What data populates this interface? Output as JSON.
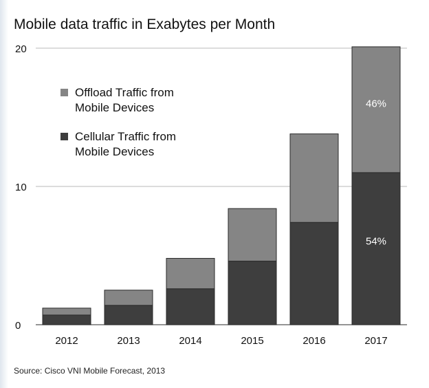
{
  "chart_data": {
    "type": "bar",
    "stacked": true,
    "title": "Mobile data traffic in Exabytes per Month",
    "categories": [
      "2012",
      "2013",
      "2014",
      "2015",
      "2016",
      "2017"
    ],
    "series": [
      {
        "name": "Cellular Traffic from\nMobile Devices",
        "values": [
          0.7,
          1.4,
          2.6,
          4.6,
          7.4,
          11.0
        ],
        "color": "#3e3e3e"
      },
      {
        "name": "Offload Traffic from\nMobile Devices",
        "values": [
          0.5,
          1.1,
          2.2,
          3.8,
          6.4,
          9.1
        ],
        "color": "#858585"
      }
    ],
    "annotations": [
      {
        "category": "2017",
        "series": "Offload Traffic from\nMobile Devices",
        "text": "46%"
      },
      {
        "category": "2017",
        "series": "Cellular Traffic from\nMobile Devices",
        "text": "54%"
      }
    ],
    "ylim": [
      0,
      20
    ],
    "yticks": [
      "0",
      "10",
      "20"
    ],
    "grid": true,
    "legend": "top-left",
    "xlabel": "",
    "ylabel": ""
  },
  "source": "Source: Cisco VNI Mobile Forecast, 2013"
}
